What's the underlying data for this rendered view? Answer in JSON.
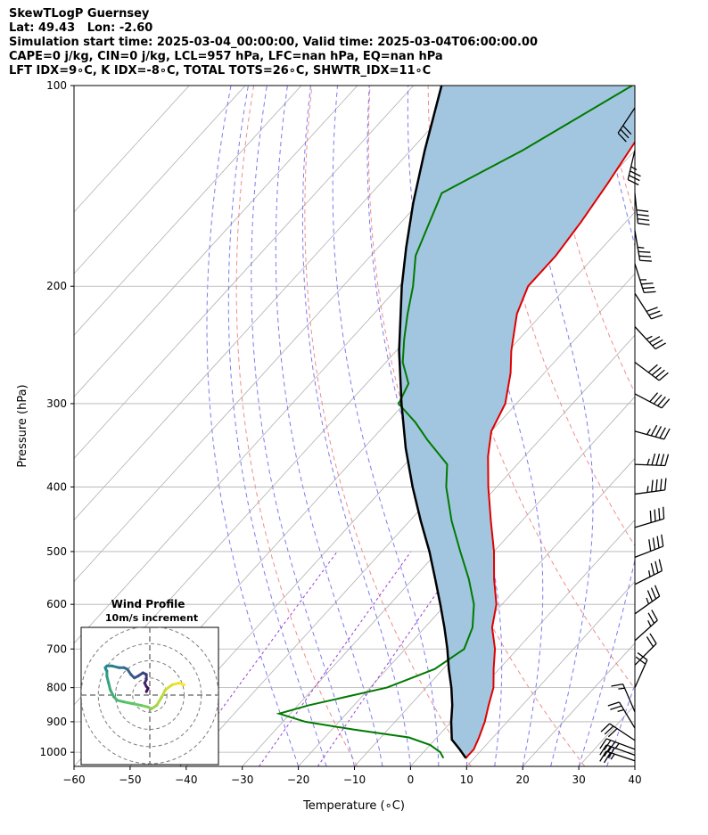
{
  "header": {
    "title": "SkewTLogP Guernsey",
    "latlon": "Lat: 49.43   Lon: -2.60",
    "times": "Simulation start time: 2025-03-04_00:00:00, Valid time: 2025-03-04T06:00:00.00",
    "indices1": "CAPE=0 j/kg, CIN=0 j/kg, LCL=957 hPa, LFC=nan hPa, EQ=nan hPa",
    "indices2": "LFT IDX=9∘C, K IDX=-8∘C, TOTAL TOTS=26∘C, SHWTR_IDX=11∘C"
  },
  "chart_data": {
    "type": "line",
    "skew_t": true,
    "xlabel": "Temperature (∘C)",
    "ylabel": "Pressure (hPa)",
    "xlim": [
      -60,
      40
    ],
    "ylim": [
      1050,
      100
    ],
    "yscale": "log",
    "xticks": [
      -60,
      -50,
      -40,
      -30,
      -20,
      -10,
      0,
      10,
      20,
      30,
      40
    ],
    "yticks": [
      100,
      200,
      300,
      400,
      500,
      600,
      700,
      800,
      900,
      1000
    ],
    "grid": true,
    "colors": {
      "temperature": "#e00000",
      "dewpoint": "#007a00",
      "parcel": "#000000",
      "cin_fill": "#a3c6e0",
      "dry_adiabat": "#f08080",
      "moist_adiabat": "#6d6df0",
      "mixing_ratio": "#9a3ad6",
      "isotherm": "#b0b0b0"
    },
    "temperature": [
      {
        "p": 1020,
        "t": 8.5
      },
      {
        "p": 990,
        "t": 8.5
      },
      {
        "p": 950,
        "t": 7.5
      },
      {
        "p": 900,
        "t": 6.0
      },
      {
        "p": 850,
        "t": 4.0
      },
      {
        "p": 800,
        "t": 2.0
      },
      {
        "p": 750,
        "t": -1.0
      },
      {
        "p": 700,
        "t": -4.0
      },
      {
        "p": 650,
        "t": -8.0
      },
      {
        "p": 600,
        "t": -11.0
      },
      {
        "p": 550,
        "t": -15.5
      },
      {
        "p": 500,
        "t": -20.0
      },
      {
        "p": 450,
        "t": -25.5
      },
      {
        "p": 400,
        "t": -31.5
      },
      {
        "p": 360,
        "t": -36.5
      },
      {
        "p": 330,
        "t": -40.0
      },
      {
        "p": 300,
        "t": -42.0
      },
      {
        "p": 270,
        "t": -46.0
      },
      {
        "p": 250,
        "t": -49.5
      },
      {
        "p": 220,
        "t": -54.5
      },
      {
        "p": 200,
        "t": -57.0
      },
      {
        "p": 180,
        "t": -57.0
      },
      {
        "p": 160,
        "t": -58.0
      },
      {
        "p": 140,
        "t": -59.5
      },
      {
        "p": 120,
        "t": -61.5
      },
      {
        "p": 110,
        "t": -62.5
      },
      {
        "p": 100,
        "t": -64.0
      }
    ],
    "dewpoint": [
      {
        "p": 1020,
        "t": 4.5
      },
      {
        "p": 1000,
        "t": 3.0
      },
      {
        "p": 975,
        "t": 0.0
      },
      {
        "p": 950,
        "t": -5.0
      },
      {
        "p": 925,
        "t": -16.0
      },
      {
        "p": 900,
        "t": -26.0
      },
      {
        "p": 875,
        "t": -32.0
      },
      {
        "p": 850,
        "t": -28.0
      },
      {
        "p": 800,
        "t": -17.0
      },
      {
        "p": 750,
        "t": -11.5
      },
      {
        "p": 700,
        "t": -9.5
      },
      {
        "p": 650,
        "t": -11.5
      },
      {
        "p": 600,
        "t": -15.0
      },
      {
        "p": 550,
        "t": -20.0
      },
      {
        "p": 500,
        "t": -26.0
      },
      {
        "p": 450,
        "t": -32.5
      },
      {
        "p": 400,
        "t": -39.0
      },
      {
        "p": 370,
        "t": -42.5
      },
      {
        "p": 340,
        "t": -50.0
      },
      {
        "p": 320,
        "t": -55.0
      },
      {
        "p": 300,
        "t": -61.0
      },
      {
        "p": 280,
        "t": -62.5
      },
      {
        "p": 260,
        "t": -67.0
      },
      {
        "p": 240,
        "t": -70.5
      },
      {
        "p": 220,
        "t": -74.0
      },
      {
        "p": 200,
        "t": -77.5
      },
      {
        "p": 180,
        "t": -82.0
      },
      {
        "p": 160,
        "t": -85.0
      },
      {
        "p": 145,
        "t": -87.5
      },
      {
        "p": 125,
        "t": -80.0
      },
      {
        "p": 100,
        "t": -71.0
      }
    ],
    "parcel": [
      {
        "p": 1020,
        "t": 8.5
      },
      {
        "p": 990,
        "t": 6.0
      },
      {
        "p": 957,
        "t": 3.0
      },
      {
        "p": 900,
        "t": 0.0
      },
      {
        "p": 850,
        "t": -2.5
      },
      {
        "p": 800,
        "t": -5.5
      },
      {
        "p": 750,
        "t": -9.0
      },
      {
        "p": 700,
        "t": -12.5
      },
      {
        "p": 650,
        "t": -16.5
      },
      {
        "p": 600,
        "t": -21.0
      },
      {
        "p": 550,
        "t": -26.0
      },
      {
        "p": 500,
        "t": -31.5
      },
      {
        "p": 450,
        "t": -38.0
      },
      {
        "p": 400,
        "t": -45.0
      },
      {
        "p": 350,
        "t": -52.5
      },
      {
        "p": 300,
        "t": -60.5
      },
      {
        "p": 250,
        "t": -69.5
      },
      {
        "p": 200,
        "t": -79.5
      },
      {
        "p": 175,
        "t": -85.0
      },
      {
        "p": 150,
        "t": -91.0
      },
      {
        "p": 125,
        "t": -97.5
      },
      {
        "p": 100,
        "t": -105.0
      }
    ],
    "wind_barbs": [
      {
        "p": 1030,
        "u": -12,
        "v": 4
      },
      {
        "p": 1010,
        "u": -14,
        "v": 5
      },
      {
        "p": 990,
        "u": -16,
        "v": 6
      },
      {
        "p": 960,
        "u": -12,
        "v": 8
      },
      {
        "p": 920,
        "u": -6,
        "v": 10
      },
      {
        "p": 870,
        "u": -3,
        "v": 7
      },
      {
        "p": 800,
        "u": 4,
        "v": 9
      },
      {
        "p": 740,
        "u": 8,
        "v": 8
      },
      {
        "p": 680,
        "u": 10,
        "v": 9
      },
      {
        "p": 620,
        "u": 14,
        "v": 10
      },
      {
        "p": 560,
        "u": 16,
        "v": 8
      },
      {
        "p": 510,
        "u": 18,
        "v": 7
      },
      {
        "p": 460,
        "u": 20,
        "v": 6
      },
      {
        "p": 410,
        "u": 22,
        "v": 3
      },
      {
        "p": 370,
        "u": 24,
        "v": -1
      },
      {
        "p": 330,
        "u": 22,
        "v": -6
      },
      {
        "p": 290,
        "u": 19,
        "v": -10
      },
      {
        "p": 260,
        "u": 16,
        "v": -12
      },
      {
        "p": 230,
        "u": 12,
        "v": -13
      },
      {
        "p": 205,
        "u": 9,
        "v": -14
      },
      {
        "p": 185,
        "u": 5,
        "v": -16
      },
      {
        "p": 165,
        "u": 3,
        "v": -18
      },
      {
        "p": 145,
        "u": 2,
        "v": -20
      },
      {
        "p": 125,
        "u": -4,
        "v": -17
      },
      {
        "p": 108,
        "u": -8,
        "v": -12
      }
    ],
    "hodograph": {
      "title": "Wind Profile",
      "subtitle": "10m/s increment",
      "rings_ms": [
        10,
        20,
        30,
        40
      ],
      "trace": [
        {
          "u": 20,
          "v": 6,
          "level": 0.0
        },
        {
          "u": 17,
          "v": 7,
          "level": 0.03
        },
        {
          "u": 13,
          "v": 6,
          "level": 0.06
        },
        {
          "u": 9,
          "v": 3,
          "level": 0.09
        },
        {
          "u": 7,
          "v": -1,
          "level": 0.12
        },
        {
          "u": 4,
          "v": -6,
          "level": 0.15
        },
        {
          "u": 1,
          "v": -8,
          "level": 0.18
        },
        {
          "u": -1,
          "v": -7,
          "level": 0.21
        },
        {
          "u": -5,
          "v": -6,
          "level": 0.24
        },
        {
          "u": -10,
          "v": -5,
          "level": 0.27
        },
        {
          "u": -15,
          "v": -4,
          "level": 0.3
        },
        {
          "u": -19,
          "v": -3,
          "level": 0.34
        },
        {
          "u": -21,
          "v": -1,
          "level": 0.37
        },
        {
          "u": -23,
          "v": 3,
          "level": 0.4
        },
        {
          "u": -24,
          "v": 7,
          "level": 0.43
        },
        {
          "u": -25,
          "v": 11,
          "level": 0.46
        },
        {
          "u": -25,
          "v": 14,
          "level": 0.49
        },
        {
          "u": -26,
          "v": 16,
          "level": 0.52
        },
        {
          "u": -25,
          "v": 17,
          "level": 0.55
        },
        {
          "u": -22,
          "v": 17,
          "level": 0.58
        },
        {
          "u": -18,
          "v": 16,
          "level": 0.62
        },
        {
          "u": -15,
          "v": 16,
          "level": 0.65
        },
        {
          "u": -13,
          "v": 15,
          "level": 0.68
        },
        {
          "u": -11,
          "v": 12,
          "level": 0.71
        },
        {
          "u": -9,
          "v": 10,
          "level": 0.74
        },
        {
          "u": -7,
          "v": 11,
          "level": 0.77
        },
        {
          "u": -4,
          "v": 13,
          "level": 0.8
        },
        {
          "u": -2,
          "v": 12,
          "level": 0.83
        },
        {
          "u": -2,
          "v": 9,
          "level": 0.86
        },
        {
          "u": -3,
          "v": 7,
          "level": 0.89
        },
        {
          "u": -2,
          "v": 5,
          "level": 0.92
        },
        {
          "u": -1,
          "v": 4,
          "level": 0.96
        },
        {
          "u": -2,
          "v": 2,
          "level": 1.0
        }
      ]
    }
  }
}
